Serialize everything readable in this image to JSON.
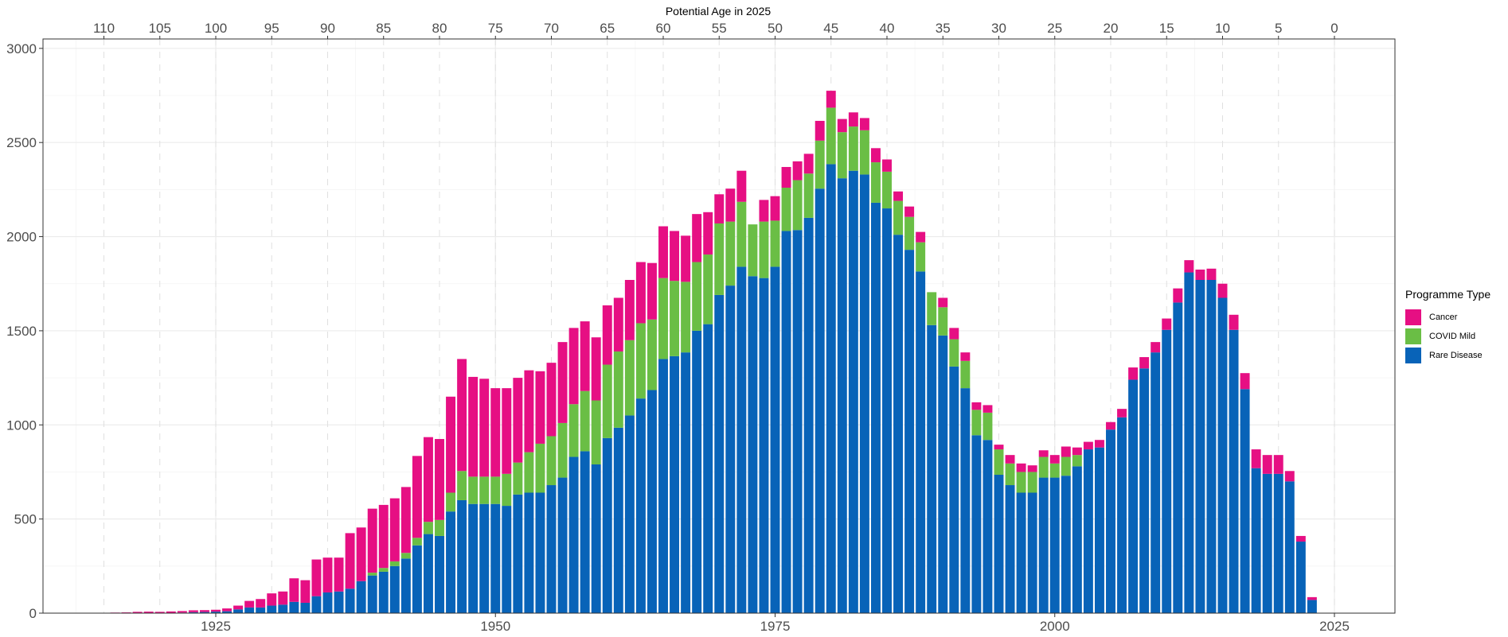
{
  "chart_data": {
    "type": "bar",
    "stacked": true,
    "x_axis_bottom": {
      "label": "",
      "ticks": [
        1925,
        1950,
        1975,
        2000,
        2025
      ],
      "range": [
        1910,
        2030
      ]
    },
    "x_axis_top": {
      "label": "Potential Age in 2025",
      "ticks": [
        110,
        105,
        100,
        95,
        90,
        85,
        80,
        75,
        70,
        65,
        60,
        55,
        50,
        45,
        40,
        35,
        30,
        25,
        20,
        15,
        10,
        5,
        0
      ]
    },
    "y_axis": {
      "label": "",
      "ticks": [
        0,
        500,
        1000,
        1500,
        2000,
        2500,
        3000
      ],
      "range": [
        0,
        3050
      ]
    },
    "grid": true,
    "legend": {
      "title": "Programme Type",
      "position": "right"
    },
    "x": [
      1916,
      1917,
      1918,
      1919,
      1920,
      1921,
      1922,
      1923,
      1924,
      1925,
      1926,
      1927,
      1928,
      1929,
      1930,
      1931,
      1932,
      1933,
      1934,
      1935,
      1936,
      1937,
      1938,
      1939,
      1940,
      1941,
      1942,
      1943,
      1944,
      1945,
      1946,
      1947,
      1948,
      1949,
      1950,
      1951,
      1952,
      1953,
      1954,
      1955,
      1956,
      1957,
      1958,
      1959,
      1960,
      1961,
      1962,
      1963,
      1964,
      1965,
      1966,
      1967,
      1968,
      1969,
      1970,
      1971,
      1972,
      1973,
      1974,
      1975,
      1976,
      1977,
      1978,
      1979,
      1980,
      1981,
      1982,
      1983,
      1984,
      1985,
      1986,
      1987,
      1988,
      1989,
      1990,
      1991,
      1992,
      1993,
      1994,
      1995,
      1996,
      1997,
      1998,
      1999,
      2000,
      2001,
      2002,
      2003,
      2004,
      2005,
      2006,
      2007,
      2008,
      2009,
      2010,
      2011,
      2012,
      2013,
      2014,
      2015,
      2016,
      2017,
      2018,
      2019,
      2020,
      2021,
      2022,
      2023
    ],
    "series": [
      {
        "name": "Rare Disease",
        "color": "#0863b8",
        "values": [
          0,
          0,
          1,
          1,
          1,
          2,
          3,
          5,
          6,
          8,
          10,
          20,
          30,
          30,
          40,
          45,
          60,
          55,
          90,
          110,
          115,
          130,
          170,
          200,
          220,
          250,
          290,
          360,
          420,
          410,
          540,
          600,
          580,
          580,
          580,
          570,
          630,
          640,
          640,
          680,
          720,
          830,
          860,
          790,
          930,
          985,
          1050,
          1140,
          1185,
          1350,
          1365,
          1385,
          1500,
          1535,
          1690,
          1740,
          1840,
          1790,
          1780,
          1840,
          2030,
          2035,
          2100,
          2255,
          2385,
          2310,
          2350,
          2330,
          2180,
          2150,
          2010,
          1930,
          1815,
          1530,
          1475,
          1310,
          1195,
          945,
          920,
          735,
          680,
          640,
          640,
          720,
          720,
          730,
          780,
          870,
          880,
          975,
          1040,
          1240,
          1300,
          1385,
          1505,
          1650,
          1810,
          1770,
          1770,
          1675,
          1505,
          1190,
          770,
          740,
          740,
          700,
          380,
          70
        ]
      },
      {
        "name": "COVID Mild",
        "color": "#6abe45",
        "values": [
          0,
          0,
          0,
          0,
          0,
          0,
          0,
          0,
          0,
          0,
          0,
          0,
          0,
          0,
          0,
          0,
          0,
          0,
          0,
          0,
          0,
          0,
          0,
          15,
          20,
          25,
          30,
          40,
          65,
          85,
          100,
          155,
          145,
          145,
          145,
          170,
          170,
          215,
          260,
          260,
          290,
          280,
          320,
          340,
          390,
          405,
          400,
          400,
          375,
          430,
          400,
          375,
          365,
          370,
          380,
          340,
          345,
          275,
          300,
          245,
          230,
          265,
          235,
          255,
          300,
          245,
          235,
          235,
          215,
          195,
          180,
          175,
          155,
          175,
          150,
          145,
          145,
          135,
          145,
          135,
          115,
          110,
          110,
          110,
          75,
          100,
          60,
          0,
          0,
          0,
          0,
          0,
          0,
          0,
          0,
          0,
          0,
          0,
          0,
          0,
          0,
          0,
          0,
          0,
          0,
          0,
          0,
          0
        ]
      },
      {
        "name": "Cancer",
        "color": "#e60f83",
        "values": [
          3,
          4,
          6,
          7,
          6,
          7,
          8,
          10,
          10,
          10,
          15,
          20,
          35,
          45,
          65,
          70,
          125,
          120,
          195,
          185,
          180,
          295,
          285,
          340,
          335,
          335,
          350,
          435,
          450,
          430,
          510,
          595,
          530,
          520,
          470,
          455,
          450,
          435,
          385,
          390,
          430,
          405,
          370,
          335,
          315,
          285,
          320,
          325,
          300,
          275,
          265,
          245,
          255,
          225,
          155,
          175,
          165,
          0,
          115,
          130,
          110,
          100,
          105,
          105,
          90,
          70,
          75,
          65,
          75,
          65,
          50,
          55,
          55,
          0,
          50,
          60,
          45,
          40,
          40,
          25,
          45,
          45,
          35,
          35,
          45,
          55,
          40,
          40,
          40,
          40,
          45,
          65,
          60,
          55,
          60,
          75,
          65,
          55,
          60,
          75,
          80,
          85,
          100,
          100,
          100,
          55,
          30,
          15
        ]
      }
    ]
  }
}
